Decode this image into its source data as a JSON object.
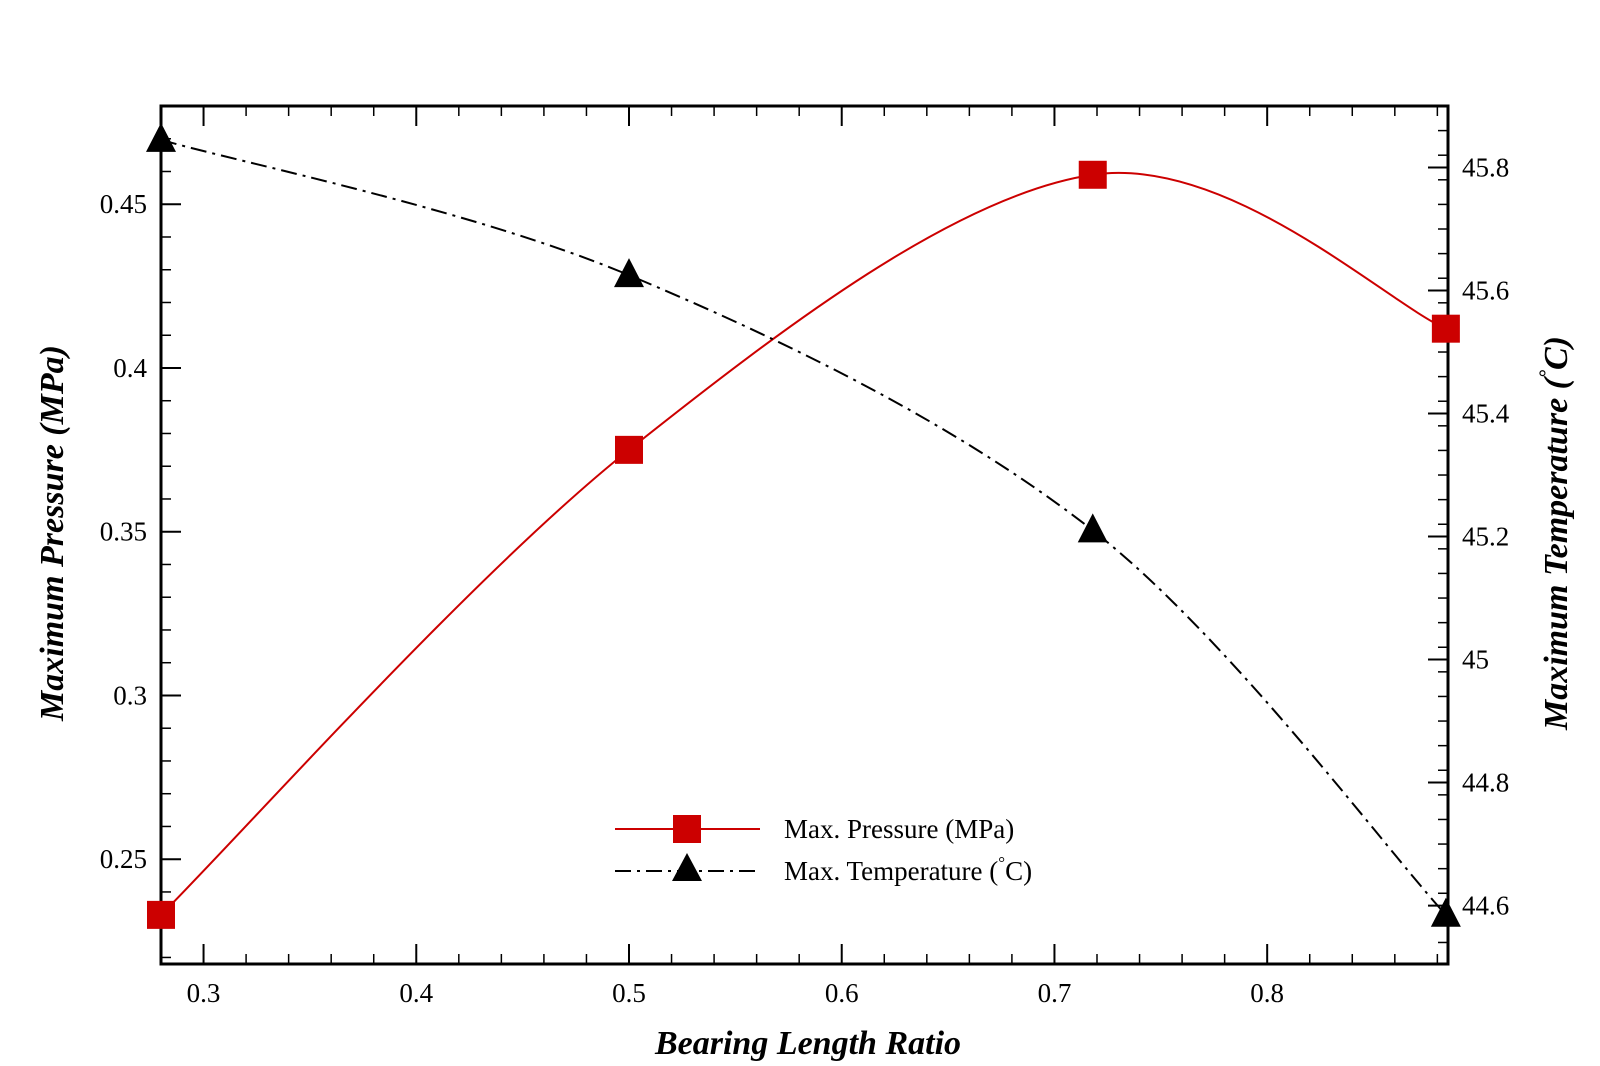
{
  "chart_data": {
    "type": "line",
    "title": "",
    "xlabel": "Bearing Length Ratio",
    "ylabel_left": "Maximum Pressure (MPa)",
    "ylabel_right_text": "Maximum Temperature (",
    "ylabel_right_degree": "°",
    "ylabel_right_unit": "C)",
    "xlim": [
      0.28,
      0.885
    ],
    "ylim_left": [
      0.218,
      0.48
    ],
    "ylim_right": [
      44.505,
      45.9
    ],
    "x_ticks": [
      {
        "v": 0.3,
        "label": "0.3"
      },
      {
        "v": 0.4,
        "label": "0.4"
      },
      {
        "v": 0.5,
        "label": "0.5"
      },
      {
        "v": 0.6,
        "label": "0.6"
      },
      {
        "v": 0.7,
        "label": "0.7"
      },
      {
        "v": 0.8,
        "label": "0.8"
      }
    ],
    "y_left_ticks": [
      {
        "v": 0.25,
        "label": "0.25"
      },
      {
        "v": 0.3,
        "label": "0.3"
      },
      {
        "v": 0.35,
        "label": "0.35"
      },
      {
        "v": 0.4,
        "label": "0.4"
      },
      {
        "v": 0.45,
        "label": "0.45"
      }
    ],
    "y_right_ticks": [
      {
        "v": 44.6,
        "label": "44.6"
      },
      {
        "v": 44.8,
        "label": "44.8"
      },
      {
        "v": 45.0,
        "label": "45"
      },
      {
        "v": 45.2,
        "label": "45.2"
      },
      {
        "v": 45.4,
        "label": "45.4"
      },
      {
        "v": 45.6,
        "label": "45.6"
      },
      {
        "v": 45.8,
        "label": "45.8"
      }
    ],
    "grid": false,
    "legend_position": "bottom-center",
    "series": [
      {
        "name": "Max. Pressure (MPa)",
        "axis": "left",
        "color": "#cc0000",
        "line_style": "solid",
        "marker": "square",
        "x": [
          0.28,
          0.5,
          0.718,
          0.884
        ],
        "y": [
          0.233,
          0.375,
          0.459,
          0.412
        ]
      },
      {
        "name_text": "Max. Temperature (",
        "name_degree": "°",
        "name_unit": "C)",
        "axis": "right",
        "color": "#000000",
        "line_style": "dash-dot",
        "marker": "triangle",
        "x": [
          0.28,
          0.5,
          0.718,
          0.884
        ],
        "y": [
          45.845,
          45.625,
          45.21,
          44.585
        ]
      }
    ]
  }
}
